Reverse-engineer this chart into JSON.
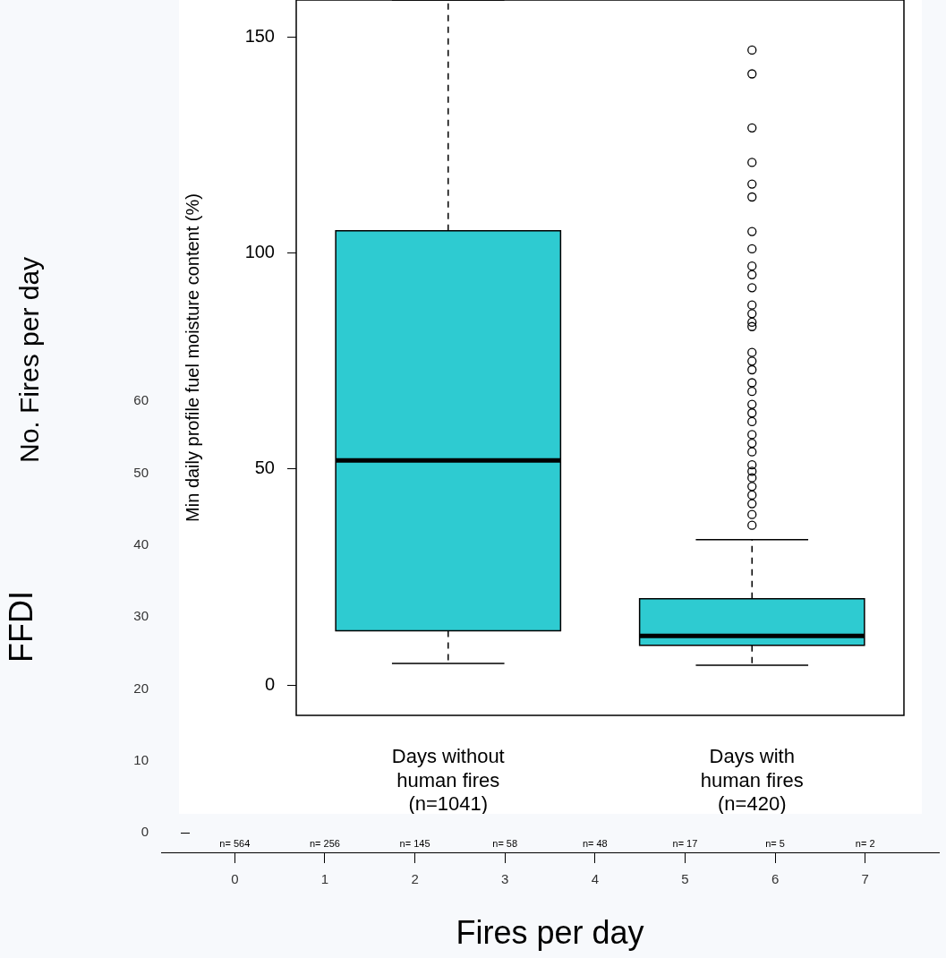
{
  "chart_data": [
    {
      "type": "other",
      "ylabel": "No. Fires per day"
    },
    {
      "type": "box",
      "categories": [
        "0",
        "1",
        "2",
        "3",
        "4",
        "5",
        "6",
        "7"
      ],
      "boxes": [
        null,
        null,
        null,
        null,
        null,
        null,
        null,
        null
      ],
      "xlabel": "Fires per day",
      "ylabel": "FFDI",
      "ylim": [
        -2.7,
        60
      ],
      "yticks": [
        0,
        10,
        20,
        30,
        40,
        50,
        60
      ],
      "annotations": [
        "n= 564",
        "n= 256",
        "n= 145",
        "n= 58",
        "n= 48",
        "n= 17",
        "n= 5",
        "n= 2"
      ]
    },
    {
      "type": "box",
      "ylabel": "Min daily profile fuel moisture content (%)",
      "categories": [
        "Days without\nhuman fires\n(n=1041)",
        "Days with\nhuman fires\n(n=420)"
      ],
      "ylim": [
        -7,
        158.6
      ],
      "yticks": [
        0,
        50,
        100,
        150
      ],
      "color": "#2ecbd1",
      "boxes": [
        {
          "low": 5,
          "q1": 12.6,
          "median": 52,
          "q3": 105.2,
          "high": 158.6
        },
        {
          "low": 4.6,
          "q1": 9.2,
          "median": 11.4,
          "q3": 20,
          "high": 33.7,
          "outliers": [
            147,
            141.5,
            129,
            121,
            116,
            113,
            105,
            101,
            97,
            95,
            92,
            88,
            86,
            84,
            83,
            77,
            75,
            73,
            70,
            68,
            65,
            63,
            61,
            58,
            56,
            54,
            51,
            49.5,
            48,
            46,
            44,
            42,
            39.5,
            37
          ]
        }
      ]
    }
  ]
}
